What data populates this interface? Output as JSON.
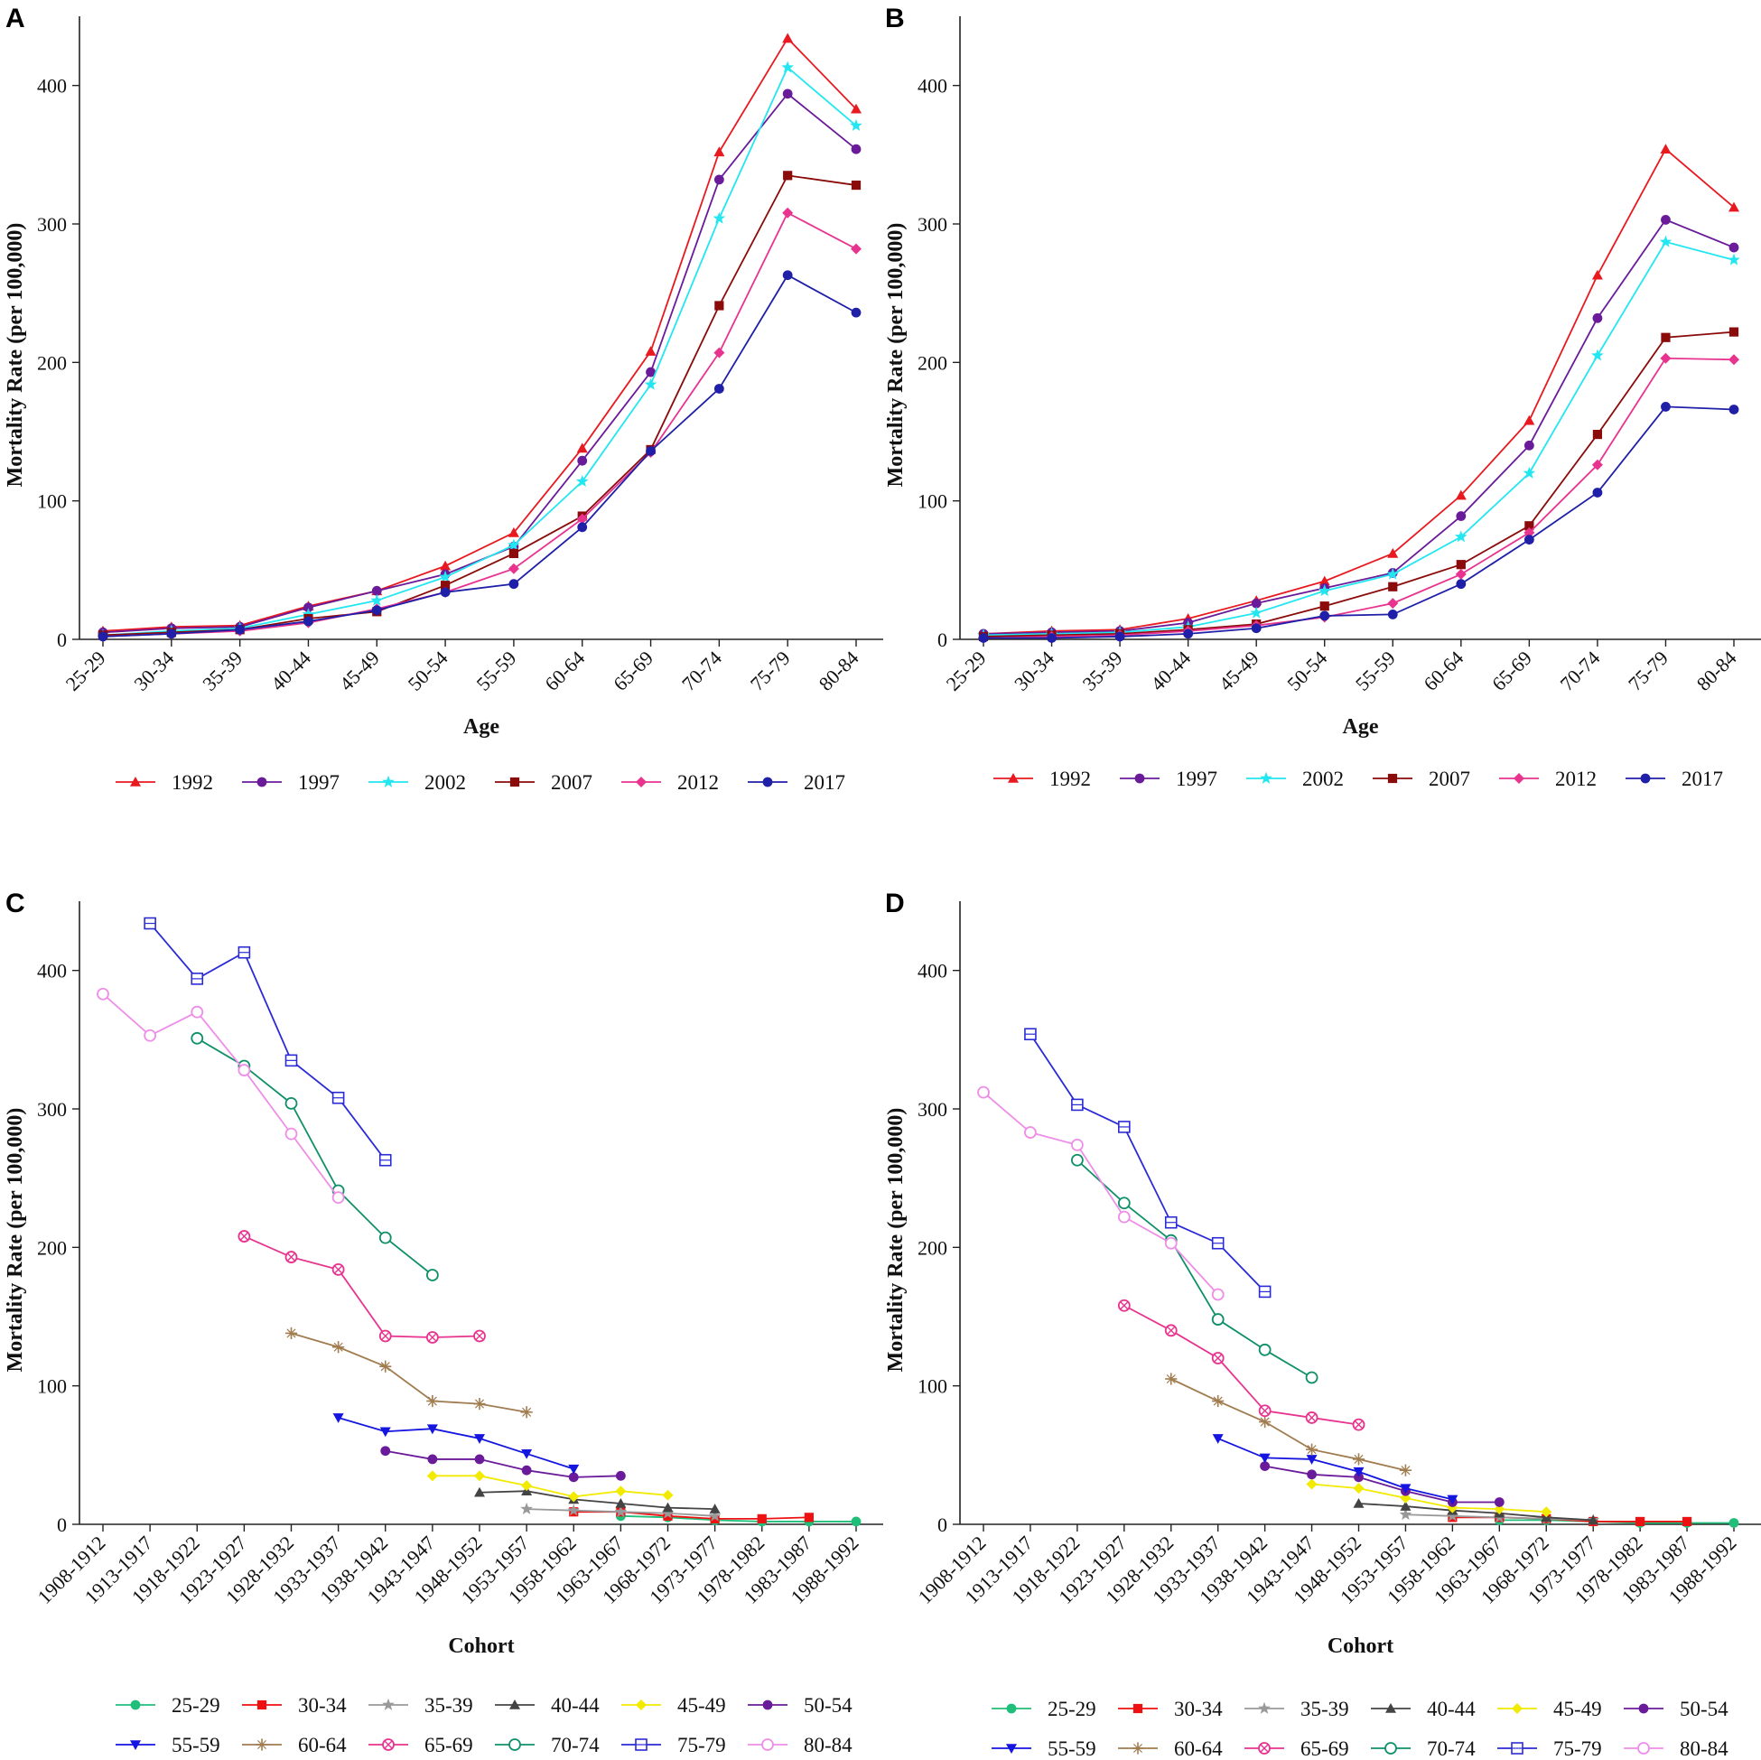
{
  "chart_data": [
    {
      "panel": "A",
      "type": "line",
      "xlabel": "Age",
      "ylabel": "Mortality Rate (per 100,000)",
      "ylim": [
        0,
        450
      ],
      "yticks": [
        0,
        100,
        200,
        300,
        400
      ],
      "categories": [
        "25-29",
        "30-34",
        "35-39",
        "40-44",
        "45-49",
        "50-54",
        "55-59",
        "60-64",
        "65-69",
        "70-74",
        "75-79",
        "80-84"
      ],
      "legend_position": "bottom",
      "series": [
        {
          "name": "1992",
          "color": "#e8191f",
          "marker": "triangle",
          "values": [
            6,
            9,
            10,
            24,
            35,
            53,
            77,
            138,
            208,
            352,
            434,
            383
          ]
        },
        {
          "name": "1997",
          "color": "#6a1b9a",
          "marker": "circle",
          "values": [
            5,
            8,
            9,
            23,
            35,
            47,
            67,
            129,
            193,
            332,
            394,
            354
          ]
        },
        {
          "name": "2002",
          "color": "#22e6f0",
          "marker": "star",
          "values": [
            3,
            6,
            8,
            18,
            28,
            45,
            68,
            114,
            184,
            304,
            413,
            371
          ]
        },
        {
          "name": "2007",
          "color": "#8b0a0a",
          "marker": "square",
          "values": [
            3,
            5,
            7,
            15,
            20,
            39,
            62,
            89,
            137,
            241,
            335,
            328
          ]
        },
        {
          "name": "2012",
          "color": "#e8338f",
          "marker": "diamond",
          "values": [
            2,
            4,
            6,
            12,
            22,
            34,
            51,
            87,
            135,
            207,
            308,
            282
          ]
        },
        {
          "name": "2017",
          "color": "#1f1fa8",
          "marker": "circle",
          "values": [
            2,
            4,
            7,
            13,
            21,
            34,
            40,
            81,
            136,
            181,
            263,
            236
          ]
        }
      ]
    },
    {
      "panel": "B",
      "type": "line",
      "xlabel": "Age",
      "ylabel": "Mortality Rate (per 100,000)",
      "ylim": [
        0,
        450
      ],
      "yticks": [
        0,
        100,
        200,
        300,
        400
      ],
      "categories": [
        "25-29",
        "30-34",
        "35-39",
        "40-44",
        "45-49",
        "50-54",
        "55-59",
        "60-64",
        "65-69",
        "70-74",
        "75-79",
        "80-84"
      ],
      "legend_position": "bottom",
      "series": [
        {
          "name": "1992",
          "color": "#e8191f",
          "marker": "triangle",
          "values": [
            4,
            6,
            7,
            15,
            28,
            42,
            62,
            104,
            158,
            263,
            354,
            312
          ]
        },
        {
          "name": "1997",
          "color": "#6a1b9a",
          "marker": "circle",
          "values": [
            4,
            5,
            6,
            12,
            26,
            37,
            48,
            89,
            140,
            232,
            303,
            283
          ]
        },
        {
          "name": "2002",
          "color": "#22e6f0",
          "marker": "star",
          "values": [
            3,
            4,
            5,
            9,
            19,
            35,
            47,
            74,
            120,
            205,
            287,
            274
          ]
        },
        {
          "name": "2007",
          "color": "#8b0a0a",
          "marker": "square",
          "values": [
            2,
            3,
            4,
            7,
            11,
            24,
            38,
            54,
            82,
            148,
            218,
            222
          ]
        },
        {
          "name": "2012",
          "color": "#e8338f",
          "marker": "diamond",
          "values": [
            1,
            2,
            3,
            6,
            10,
            16,
            26,
            47,
            77,
            126,
            203,
            202
          ]
        },
        {
          "name": "2017",
          "color": "#1f1fa8",
          "marker": "circle",
          "values": [
            1,
            1,
            2,
            4,
            8,
            17,
            18,
            40,
            72,
            106,
            168,
            166
          ]
        }
      ]
    },
    {
      "panel": "C",
      "type": "line",
      "xlabel": "Cohort",
      "ylabel": "Mortality Rate (per 100,000)",
      "ylim": [
        0,
        450
      ],
      "yticks": [
        0,
        100,
        200,
        300,
        400
      ],
      "categories": [
        "1908-1912",
        "1913-1917",
        "1918-1922",
        "1923-1927",
        "1928-1932",
        "1933-1937",
        "1938-1942",
        "1943-1947",
        "1948-1952",
        "1953-1957",
        "1958-1962",
        "1963-1967",
        "1968-1972",
        "1973-1977",
        "1978-1982",
        "1983-1987",
        "1988-1992"
      ],
      "legend_position": "bottom",
      "series": [
        {
          "name": "25-29",
          "color": "#1fbf7a",
          "marker": "circle",
          "values": [
            null,
            null,
            null,
            null,
            null,
            null,
            null,
            null,
            null,
            null,
            null,
            6,
            5,
            3,
            2,
            2,
            2
          ]
        },
        {
          "name": "30-34",
          "color": "#ee1111",
          "marker": "square",
          "values": [
            null,
            null,
            null,
            null,
            null,
            null,
            null,
            null,
            null,
            null,
            9,
            9,
            6,
            4,
            4,
            5,
            null
          ]
        },
        {
          "name": "35-39",
          "color": "#999999",
          "marker": "star",
          "values": [
            null,
            null,
            null,
            null,
            null,
            null,
            null,
            null,
            null,
            11,
            10,
            9,
            8,
            6,
            null,
            null,
            null
          ]
        },
        {
          "name": "40-44",
          "color": "#444444",
          "marker": "triangle",
          "values": [
            null,
            null,
            null,
            null,
            null,
            null,
            null,
            null,
            23,
            24,
            18,
            15,
            12,
            11,
            null,
            null,
            null
          ]
        },
        {
          "name": "45-49",
          "color": "#f2ea00",
          "marker": "diamond",
          "values": [
            null,
            null,
            null,
            null,
            null,
            null,
            null,
            35,
            35,
            28,
            20,
            24,
            21,
            null,
            null,
            null,
            null
          ]
        },
        {
          "name": "50-54",
          "color": "#6a1b9a",
          "marker": "circle",
          "values": [
            null,
            null,
            null,
            null,
            null,
            null,
            53,
            47,
            47,
            39,
            34,
            35,
            null,
            null,
            null,
            null,
            null
          ]
        },
        {
          "name": "55-59",
          "color": "#1515e0",
          "marker": "triangle-down",
          "values": [
            null,
            null,
            null,
            null,
            null,
            77,
            67,
            69,
            62,
            51,
            40,
            null,
            null,
            null,
            null,
            null,
            null
          ]
        },
        {
          "name": "60-64",
          "color": "#a07c4f",
          "marker": "plus-star",
          "values": [
            null,
            null,
            null,
            null,
            138,
            128,
            114,
            89,
            87,
            81,
            null,
            null,
            null,
            null,
            null,
            null,
            null
          ]
        },
        {
          "name": "65-69",
          "color": "#e8338f",
          "marker": "circle-x",
          "values": [
            null,
            null,
            null,
            208,
            193,
            184,
            136,
            135,
            136,
            null,
            null,
            null,
            null,
            null,
            null,
            null,
            null
          ]
        },
        {
          "name": "70-74",
          "color": "#10906a",
          "marker": "circle-open",
          "values": [
            null,
            null,
            351,
            331,
            304,
            241,
            207,
            180,
            null,
            null,
            null,
            null,
            null,
            null,
            null,
            null,
            null
          ]
        },
        {
          "name": "75-79",
          "color": "#2b2bd6",
          "marker": "square-open",
          "values": [
            null,
            434,
            394,
            413,
            335,
            308,
            263,
            null,
            null,
            null,
            null,
            null,
            null,
            null,
            null,
            null,
            null
          ]
        },
        {
          "name": "80-84",
          "color": "#ee8ee8",
          "marker": "circle-open",
          "values": [
            383,
            353,
            370,
            328,
            282,
            236,
            null,
            null,
            null,
            null,
            null,
            null,
            null,
            null,
            null,
            null,
            null
          ]
        }
      ]
    },
    {
      "panel": "D",
      "type": "line",
      "xlabel": "Cohort",
      "ylabel": "Mortality Rate (per 100,000)",
      "ylim": [
        0,
        450
      ],
      "yticks": [
        0,
        100,
        200,
        300,
        400
      ],
      "categories": [
        "1908-1912",
        "1913-1917",
        "1918-1922",
        "1923-1927",
        "1928-1932",
        "1933-1937",
        "1938-1942",
        "1943-1947",
        "1948-1952",
        "1953-1957",
        "1958-1962",
        "1963-1967",
        "1968-1972",
        "1973-1977",
        "1978-1982",
        "1983-1987",
        "1988-1992"
      ],
      "legend_position": "bottom",
      "series": [
        {
          "name": "25-29",
          "color": "#1fbf7a",
          "marker": "circle",
          "values": [
            null,
            null,
            null,
            null,
            null,
            null,
            null,
            null,
            null,
            null,
            null,
            3,
            3,
            2,
            1,
            1,
            1
          ]
        },
        {
          "name": "30-34",
          "color": "#ee1111",
          "marker": "square",
          "values": [
            null,
            null,
            null,
            null,
            null,
            null,
            null,
            null,
            null,
            null,
            5,
            5,
            4,
            2,
            2,
            2,
            null
          ]
        },
        {
          "name": "35-39",
          "color": "#999999",
          "marker": "star",
          "values": [
            null,
            null,
            null,
            null,
            null,
            null,
            null,
            null,
            null,
            7,
            6,
            5,
            4,
            3,
            null,
            null,
            null
          ]
        },
        {
          "name": "40-44",
          "color": "#444444",
          "marker": "triangle",
          "values": [
            null,
            null,
            null,
            null,
            null,
            null,
            null,
            null,
            15,
            13,
            10,
            8,
            5,
            3,
            null,
            null,
            null
          ]
        },
        {
          "name": "45-49",
          "color": "#f2ea00",
          "marker": "diamond",
          "values": [
            null,
            null,
            null,
            null,
            null,
            null,
            null,
            29,
            26,
            19,
            12,
            11,
            9,
            null,
            null,
            null,
            null
          ]
        },
        {
          "name": "50-54",
          "color": "#6a1b9a",
          "marker": "circle",
          "values": [
            null,
            null,
            null,
            null,
            null,
            null,
            42,
            36,
            34,
            24,
            16,
            16,
            null,
            null,
            null,
            null,
            null
          ]
        },
        {
          "name": "55-59",
          "color": "#1515e0",
          "marker": "triangle-down",
          "values": [
            null,
            null,
            null,
            null,
            null,
            62,
            48,
            47,
            38,
            26,
            18,
            null,
            null,
            null,
            null,
            null,
            null
          ]
        },
        {
          "name": "60-64",
          "color": "#a07c4f",
          "marker": "plus-star",
          "values": [
            null,
            null,
            null,
            null,
            105,
            89,
            74,
            54,
            47,
            39,
            null,
            null,
            null,
            null,
            null,
            null,
            null
          ]
        },
        {
          "name": "65-69",
          "color": "#e8338f",
          "marker": "circle-x",
          "values": [
            null,
            null,
            null,
            158,
            140,
            120,
            82,
            77,
            72,
            null,
            null,
            null,
            null,
            null,
            null,
            null,
            null
          ]
        },
        {
          "name": "70-74",
          "color": "#10906a",
          "marker": "circle-open",
          "values": [
            null,
            null,
            263,
            232,
            205,
            148,
            126,
            106,
            null,
            null,
            null,
            null,
            null,
            null,
            null,
            null,
            null
          ]
        },
        {
          "name": "75-79",
          "color": "#2b2bd6",
          "marker": "square-open",
          "values": [
            null,
            354,
            303,
            287,
            218,
            203,
            168,
            null,
            null,
            null,
            null,
            null,
            null,
            null,
            null,
            null,
            null
          ]
        },
        {
          "name": "80-84",
          "color": "#ee8ee8",
          "marker": "circle-open",
          "values": [
            312,
            283,
            274,
            222,
            203,
            166,
            null,
            null,
            null,
            null,
            null,
            null,
            null,
            null,
            null,
            null,
            null
          ]
        }
      ]
    }
  ]
}
